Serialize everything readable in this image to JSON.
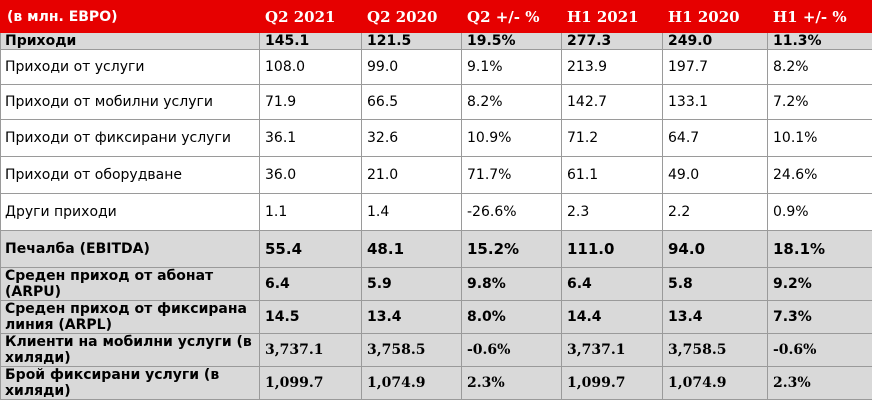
{
  "table": {
    "headers": [
      "(в млн. ЕВРО)",
      "Q2 2021",
      "Q2 2020",
      "Q2 +/- %",
      "H1 2021",
      "H1 2020",
      "H1 +/- %"
    ],
    "rows": [
      [
        "Приходи",
        "145.1",
        "121.5",
        "19.5%",
        "277.3",
        "249.0",
        "11.3%"
      ],
      [
        "Приходи от услуги",
        "108.0",
        "99.0",
        "9.1%",
        "213.9",
        "197.7",
        "8.2%"
      ],
      [
        "Приходи от мобилни услуги",
        "71.9",
        "66.5",
        "8.2%",
        "142.7",
        "133.1",
        "7.2%"
      ],
      [
        "Приходи от фиксирани услуги",
        "36.1",
        "32.6",
        "10.9%",
        "71.2",
        "64.7",
        "10.1%"
      ],
      [
        "Приходи от оборудване",
        "36.0",
        "21.0",
        "71.7%",
        "61.1",
        "49.0",
        "24.6%"
      ],
      [
        "Други приходи",
        "1.1",
        "1.4",
        "-26.6%",
        "2.3",
        "2.2",
        "0.9%"
      ],
      [
        "Печалба (EBITDA)",
        "55.4",
        "48.1",
        "15.2%",
        "111.0",
        "94.0",
        "18.1%"
      ],
      [
        "Среден приход от абонат (ARPU)",
        "6.4",
        "5.9",
        "9.8%",
        "6.4",
        "5.8",
        "9.2%"
      ],
      [
        "Среден приход от фиксирана линия (ARPL)",
        "14.5",
        "13.4",
        "8.0%",
        "14.4",
        "13.4",
        "7.3%"
      ],
      [
        "Клиенти на мобилни услуги (в хиляди)",
        "3,737.1",
        "3,758.5",
        "-0.6%",
        "3,737.1",
        "3,758.5",
        "-0.6%"
      ],
      [
        "Брой фиксирани услуги (в хиляди)",
        "1,099.7",
        "1,074.9",
        "2.3%",
        "1,099.7",
        "1,074.9",
        "2.3%"
      ]
    ]
  }
}
